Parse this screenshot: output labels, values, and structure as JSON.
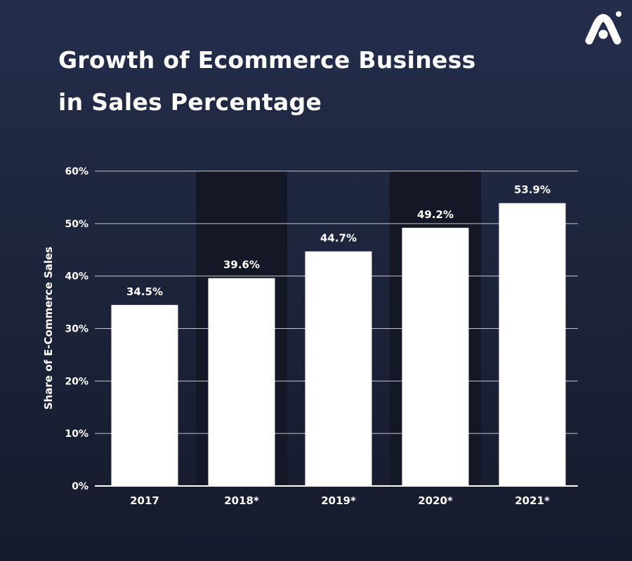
{
  "title": {
    "line1": "Growth of Ecommerce Business",
    "line2": "in Sales Percentage"
  },
  "colors": {
    "background": "#1f2740",
    "bar": "#ffffff",
    "highlight_band": "#141826",
    "text": "#ffffff",
    "gridline": "#ffffff"
  },
  "logo_icon": "brand-logo-icon",
  "chart_data": {
    "type": "bar",
    "ylabel": "Share of E-Commerce Sales",
    "xlabel": "",
    "ylim": [
      0,
      60
    ],
    "yticks": [
      0,
      10,
      20,
      30,
      40,
      50,
      60
    ],
    "ytick_labels": [
      "0%",
      "10%",
      "20%",
      "30%",
      "40%",
      "50%",
      "60%"
    ],
    "categories": [
      "2017",
      "2018*",
      "2019*",
      "2020*",
      "2021*"
    ],
    "values": [
      34.5,
      39.6,
      44.7,
      49.2,
      53.9
    ],
    "value_labels": [
      "34.5%",
      "39.6%",
      "44.7%",
      "49.2%",
      "53.9%"
    ],
    "highlighted_categories": [
      "2018*",
      "2020*"
    ],
    "grid": true
  }
}
